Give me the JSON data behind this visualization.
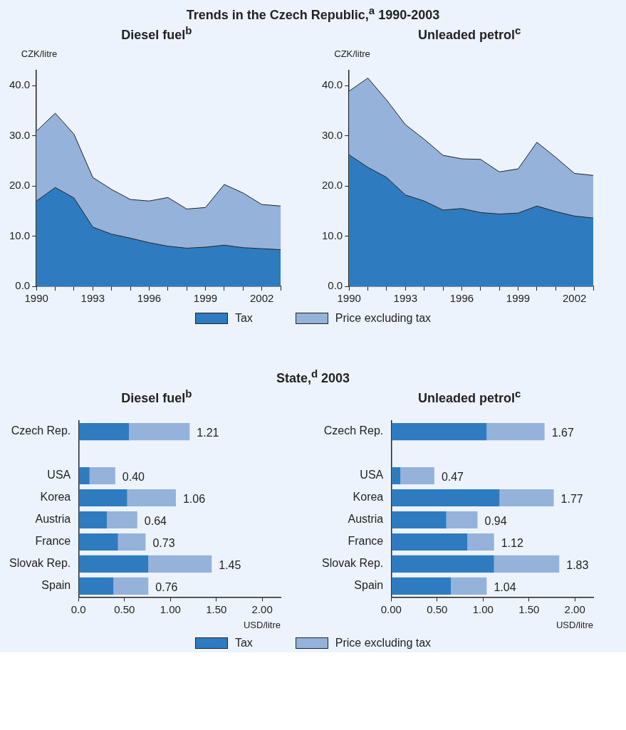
{
  "chart_data": [
    {
      "type": "area",
      "stacked": true,
      "annotations": [
        "Trends in the Czech Republic,$^{a}$ 1990-2003"
      ],
      "title": "Diesel fuel$^{b}$",
      "ylabel": "CZK/litre",
      "legend": "bottom",
      "grid": false,
      "x": [
        1990,
        1991,
        1992,
        1993,
        1994,
        1995,
        1996,
        1997,
        1998,
        1999,
        2000,
        2001,
        2002,
        2003
      ],
      "series": [
        {
          "name": "Tax",
          "color": "#2e7bc0",
          "values": [
            17.0,
            19.7,
            17.6,
            11.8,
            10.4,
            9.6,
            8.7,
            8.0,
            7.6,
            7.8,
            8.2,
            7.7,
            7.5,
            7.3
          ]
        },
        {
          "name": "Price excluding tax",
          "color": "#95b2db",
          "values": [
            13.9,
            14.8,
            12.7,
            9.9,
            8.9,
            7.7,
            8.3,
            9.7,
            7.8,
            7.9,
            12.1,
            10.9,
            8.8,
            8.7
          ]
        }
      ],
      "xlim": [
        1990,
        2003
      ],
      "xticks": [
        1990,
        {
          "value": 1991,
          "label": null
        },
        {
          "value": 1992,
          "label": null
        },
        1993,
        {
          "value": 1994,
          "label": null
        },
        {
          "value": 1995,
          "label": null
        },
        1996,
        {
          "value": 1997,
          "label": null
        },
        {
          "value": 1998,
          "label": null
        },
        1999,
        {
          "value": 2000,
          "label": null
        },
        {
          "value": 2001,
          "label": null
        },
        2002,
        {
          "value": 2003,
          "label": null
        }
      ],
      "ylim": [
        0,
        43
      ],
      "yticks": [
        {
          "value": 0,
          "label": "0.0"
        },
        {
          "value": 10,
          "label": "10.0"
        },
        {
          "value": 20,
          "label": "20.0"
        },
        {
          "value": 30,
          "label": "30.0"
        },
        {
          "value": 40,
          "label": "40.0"
        }
      ]
    },
    {
      "type": "area",
      "stacked": true,
      "title": "Unleaded petrol$^{c}$",
      "ylabel": "CZK/litre",
      "legend": "bottom",
      "grid": false,
      "x": [
        1990,
        1991,
        1992,
        1993,
        1994,
        1995,
        1996,
        1997,
        1998,
        1999,
        2000,
        2001,
        2002,
        2003
      ],
      "series": [
        {
          "name": "Tax",
          "color": "#2e7bc0",
          "values": [
            26.2,
            23.7,
            21.7,
            18.2,
            17.0,
            15.2,
            15.5,
            14.7,
            14.4,
            14.6,
            16.0,
            14.9,
            14.0,
            13.6
          ]
        },
        {
          "name": "Price excluding tax",
          "color": "#95b2db",
          "values": [
            12.7,
            17.8,
            15.4,
            14.0,
            12.3,
            10.9,
            9.9,
            10.6,
            8.4,
            8.8,
            12.7,
            10.8,
            8.5,
            8.5
          ]
        }
      ],
      "xlim": [
        1990,
        2003
      ],
      "xticks": [
        1990,
        {
          "value": 1991,
          "label": null
        },
        {
          "value": 1992,
          "label": null
        },
        1993,
        {
          "value": 1994,
          "label": null
        },
        {
          "value": 1995,
          "label": null
        },
        1996,
        {
          "value": 1997,
          "label": null
        },
        {
          "value": 1998,
          "label": null
        },
        1999,
        {
          "value": 2000,
          "label": null
        },
        {
          "value": 2001,
          "label": null
        },
        2002,
        {
          "value": 2003,
          "label": null
        }
      ],
      "ylim": [
        0,
        43
      ],
      "yticks": [
        {
          "value": 0,
          "label": "0.0"
        },
        {
          "value": 10,
          "label": "10.0"
        },
        {
          "value": 20,
          "label": "20.0"
        },
        {
          "value": 30,
          "label": "30.0"
        },
        {
          "value": 40,
          "label": "40.0"
        }
      ]
    },
    {
      "type": "bar",
      "orientation": "horizontal",
      "stacked": true,
      "annotations": [
        "State,$^{d}$ 2003"
      ],
      "title": "Diesel fuel$^{b}$",
      "xlabel": "USD/litre",
      "legend": "bottom",
      "grid": false,
      "categories": [
        "Czech Rep.",
        null,
        "USA",
        "Korea",
        "Austria",
        "France",
        "Slovak Rep.",
        "Spain"
      ],
      "series": [
        {
          "name": "Tax",
          "color": "#2e7bc0",
          "values": [
            0.55,
            null,
            0.12,
            0.53,
            0.31,
            0.43,
            0.76,
            0.38
          ]
        },
        {
          "name": "Price excluding tax",
          "color": "#95b2db",
          "values": [
            0.66,
            null,
            0.28,
            0.53,
            0.33,
            0.3,
            0.69,
            0.38
          ]
        }
      ],
      "totals": [
        "1.21",
        null,
        "0.40",
        "1.06",
        "0.64",
        "0.73",
        "1.45",
        "0.76"
      ],
      "xlim": [
        0,
        2.2
      ],
      "xticks": [
        {
          "value": 0,
          "label": "0.0"
        },
        {
          "value": 0.5,
          "label": "0.50"
        },
        {
          "value": 1,
          "label": "1.00"
        },
        {
          "value": 1.5,
          "label": "1.50"
        },
        {
          "value": 2,
          "label": "2.00"
        }
      ]
    },
    {
      "type": "bar",
      "orientation": "horizontal",
      "stacked": true,
      "title": "Unleaded petrol$^{c}$",
      "xlabel": "USD/litre",
      "legend": "bottom",
      "grid": false,
      "categories": [
        "Czech Rep.",
        null,
        "USA",
        "Korea",
        "Austria",
        "France",
        "Slovak Rep.",
        "Spain"
      ],
      "series": [
        {
          "name": "Tax",
          "color": "#2e7bc0",
          "values": [
            1.04,
            null,
            0.1,
            1.18,
            0.6,
            0.83,
            1.12,
            0.65
          ]
        },
        {
          "name": "Price excluding tax",
          "color": "#95b2db",
          "values": [
            0.63,
            null,
            0.37,
            0.59,
            0.34,
            0.29,
            0.71,
            0.39
          ]
        }
      ],
      "totals": [
        "1.67",
        null,
        "0.47",
        "1.77",
        "0.94",
        "1.12",
        "1.83",
        "1.04"
      ],
      "xlim": [
        0,
        2.2
      ],
      "xticks": [
        {
          "value": 0,
          "label": "0.00"
        },
        {
          "value": 0.5,
          "label": "0.50"
        },
        {
          "value": 1,
          "label": "1.00"
        },
        {
          "value": 1.5,
          "label": "1.50"
        },
        {
          "value": 2,
          "label": "2.00"
        }
      ]
    }
  ]
}
